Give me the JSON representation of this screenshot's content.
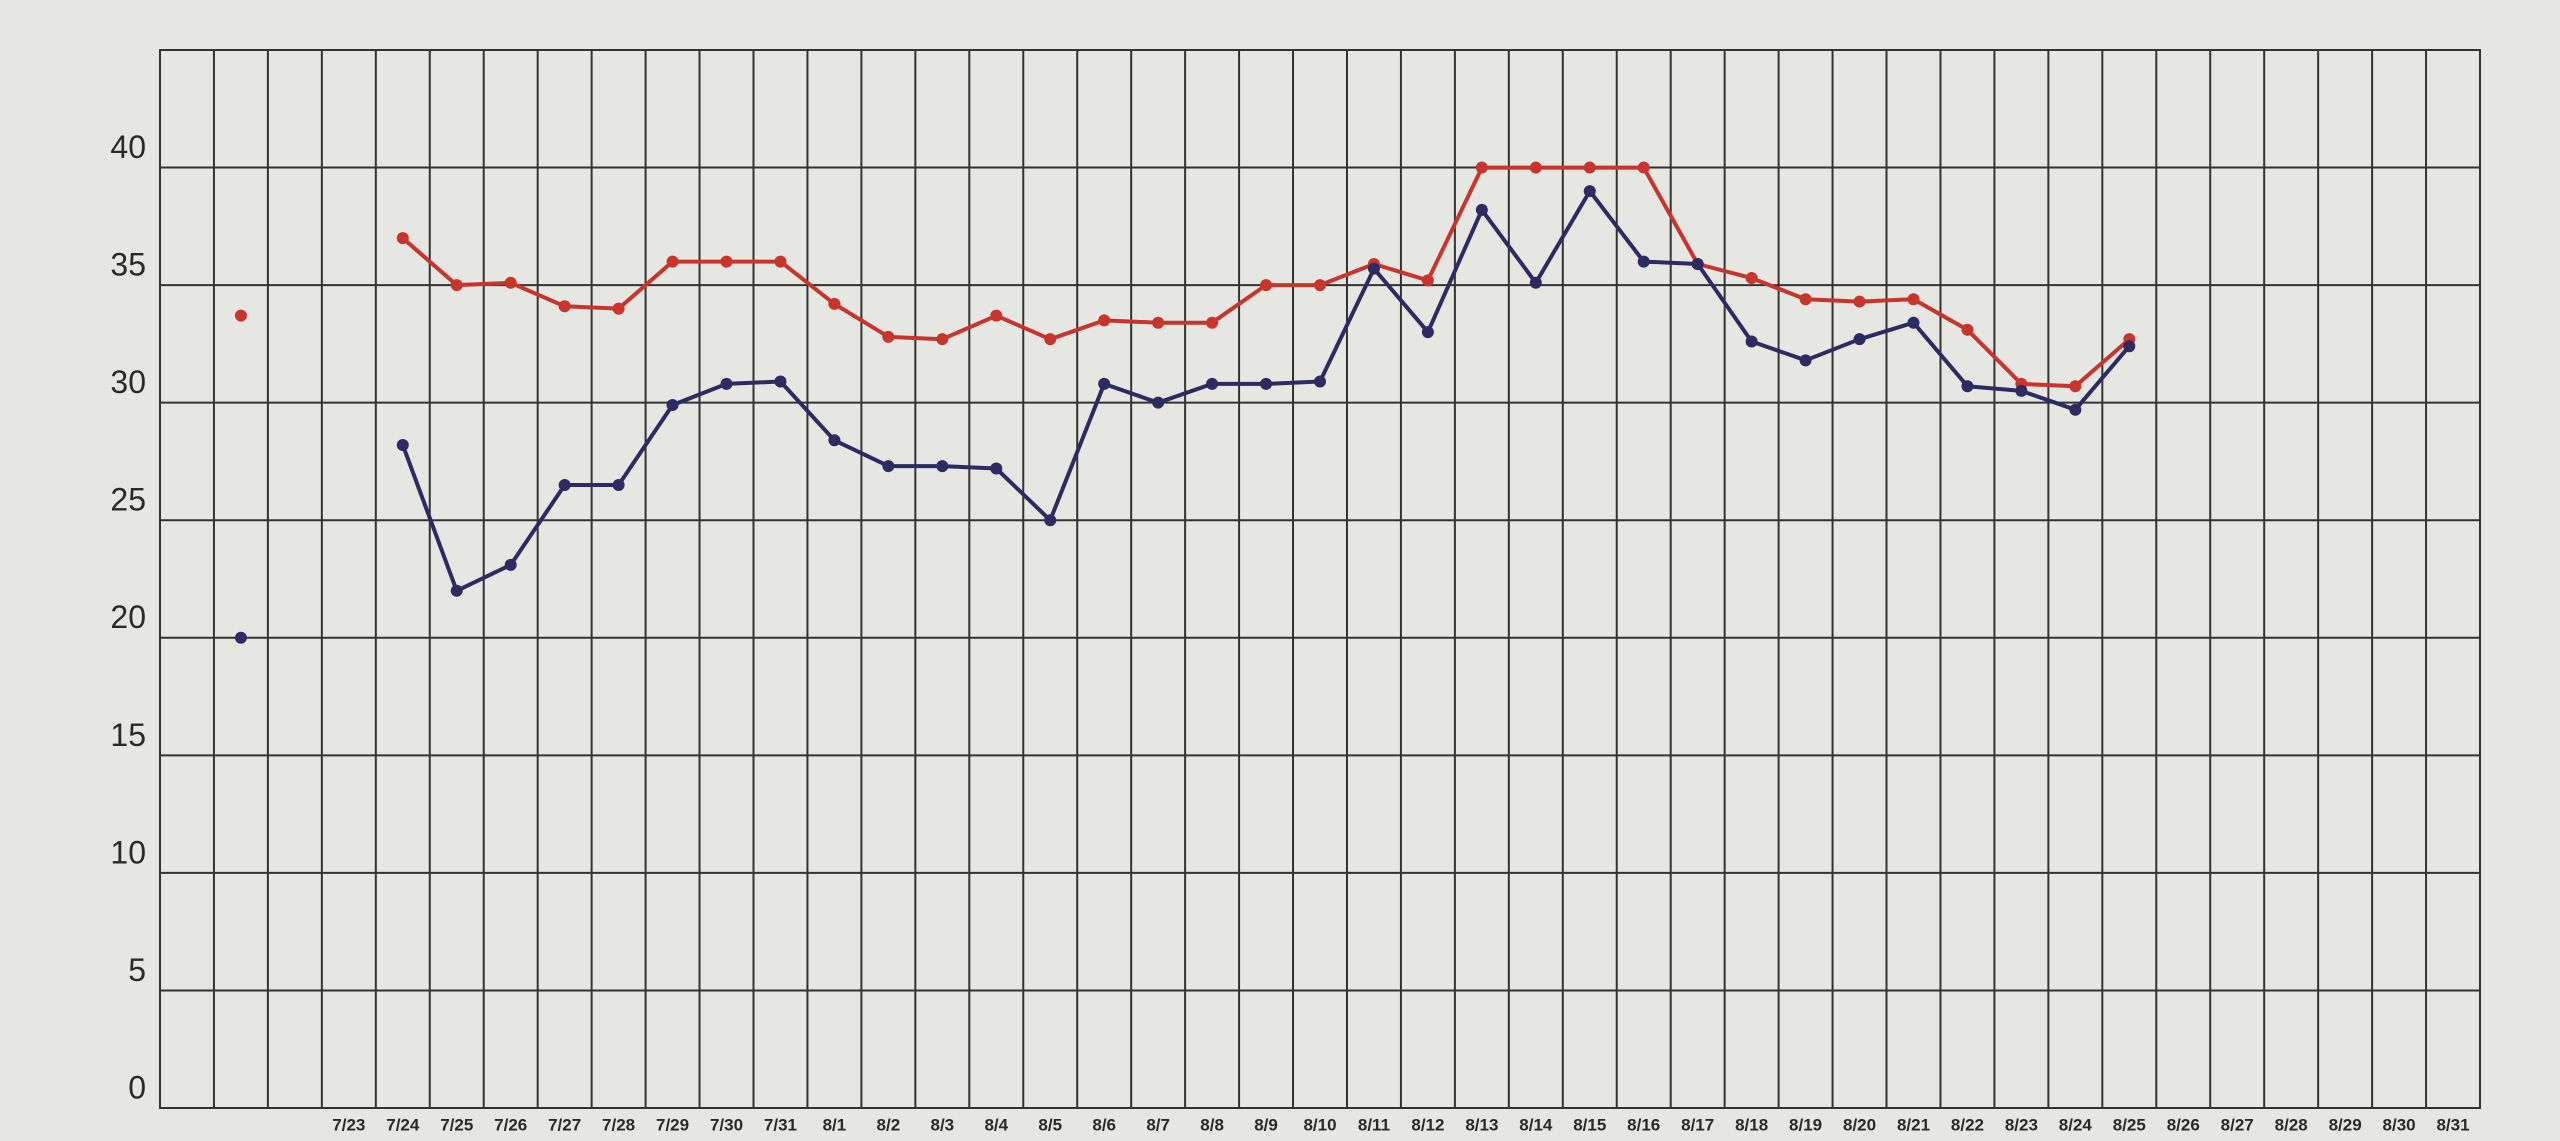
{
  "chart_data": {
    "type": "line",
    "categories": [
      null,
      null,
      null,
      "7/23",
      "7/24",
      "7/25",
      "7/26",
      "7/27",
      "7/28",
      "7/29",
      "7/30",
      "7/31",
      "8/1",
      "8/2",
      "8/3",
      "8/4",
      "8/5",
      "8/6",
      "8/7",
      "8/8",
      "8/9",
      "8/10",
      "8/11",
      "8/12",
      "8/13",
      "8/14",
      "8/15",
      "8/16",
      "8/17",
      "8/18",
      "8/19",
      "8/20",
      "8/21",
      "8/22",
      "8/23",
      "8/24",
      "8/25",
      "8/26",
      "8/27",
      "8/28",
      "8/29",
      "8/30",
      "8/31"
    ],
    "series": [
      {
        "color": "#c8352c",
        "values": [
          null,
          33.7,
          null,
          null,
          37,
          35,
          35.1,
          34.1,
          34,
          36,
          36,
          36,
          34.2,
          32.8,
          32.7,
          33.7,
          32.7,
          33.5,
          33.4,
          33.4,
          35,
          35,
          35.9,
          35.2,
          40,
          40,
          40,
          40,
          35.9,
          35.3,
          34.4,
          34.3,
          34.4,
          33.1,
          30.8,
          30.7,
          32.7,
          null,
          null,
          null,
          null,
          null,
          null
        ]
      },
      {
        "color": "#2e2a62",
        "values": [
          null,
          20,
          null,
          null,
          28.2,
          22,
          23.1,
          26.5,
          26.5,
          29.9,
          30.8,
          30.9,
          28.4,
          27.3,
          27.3,
          27.2,
          25,
          30.8,
          30,
          30.8,
          30.8,
          30.9,
          35.7,
          33,
          38.2,
          35.1,
          39,
          36,
          35.9,
          32.6,
          31.8,
          32.7,
          33.4,
          30.7,
          30.5,
          29.7,
          32.4,
          null,
          null,
          null,
          null,
          null,
          null
        ]
      }
    ],
    "ylim": [
      0,
      45
    ],
    "yticks": [
      0,
      5,
      10,
      15,
      20,
      25,
      30,
      35,
      40
    ],
    "grid": true
  }
}
